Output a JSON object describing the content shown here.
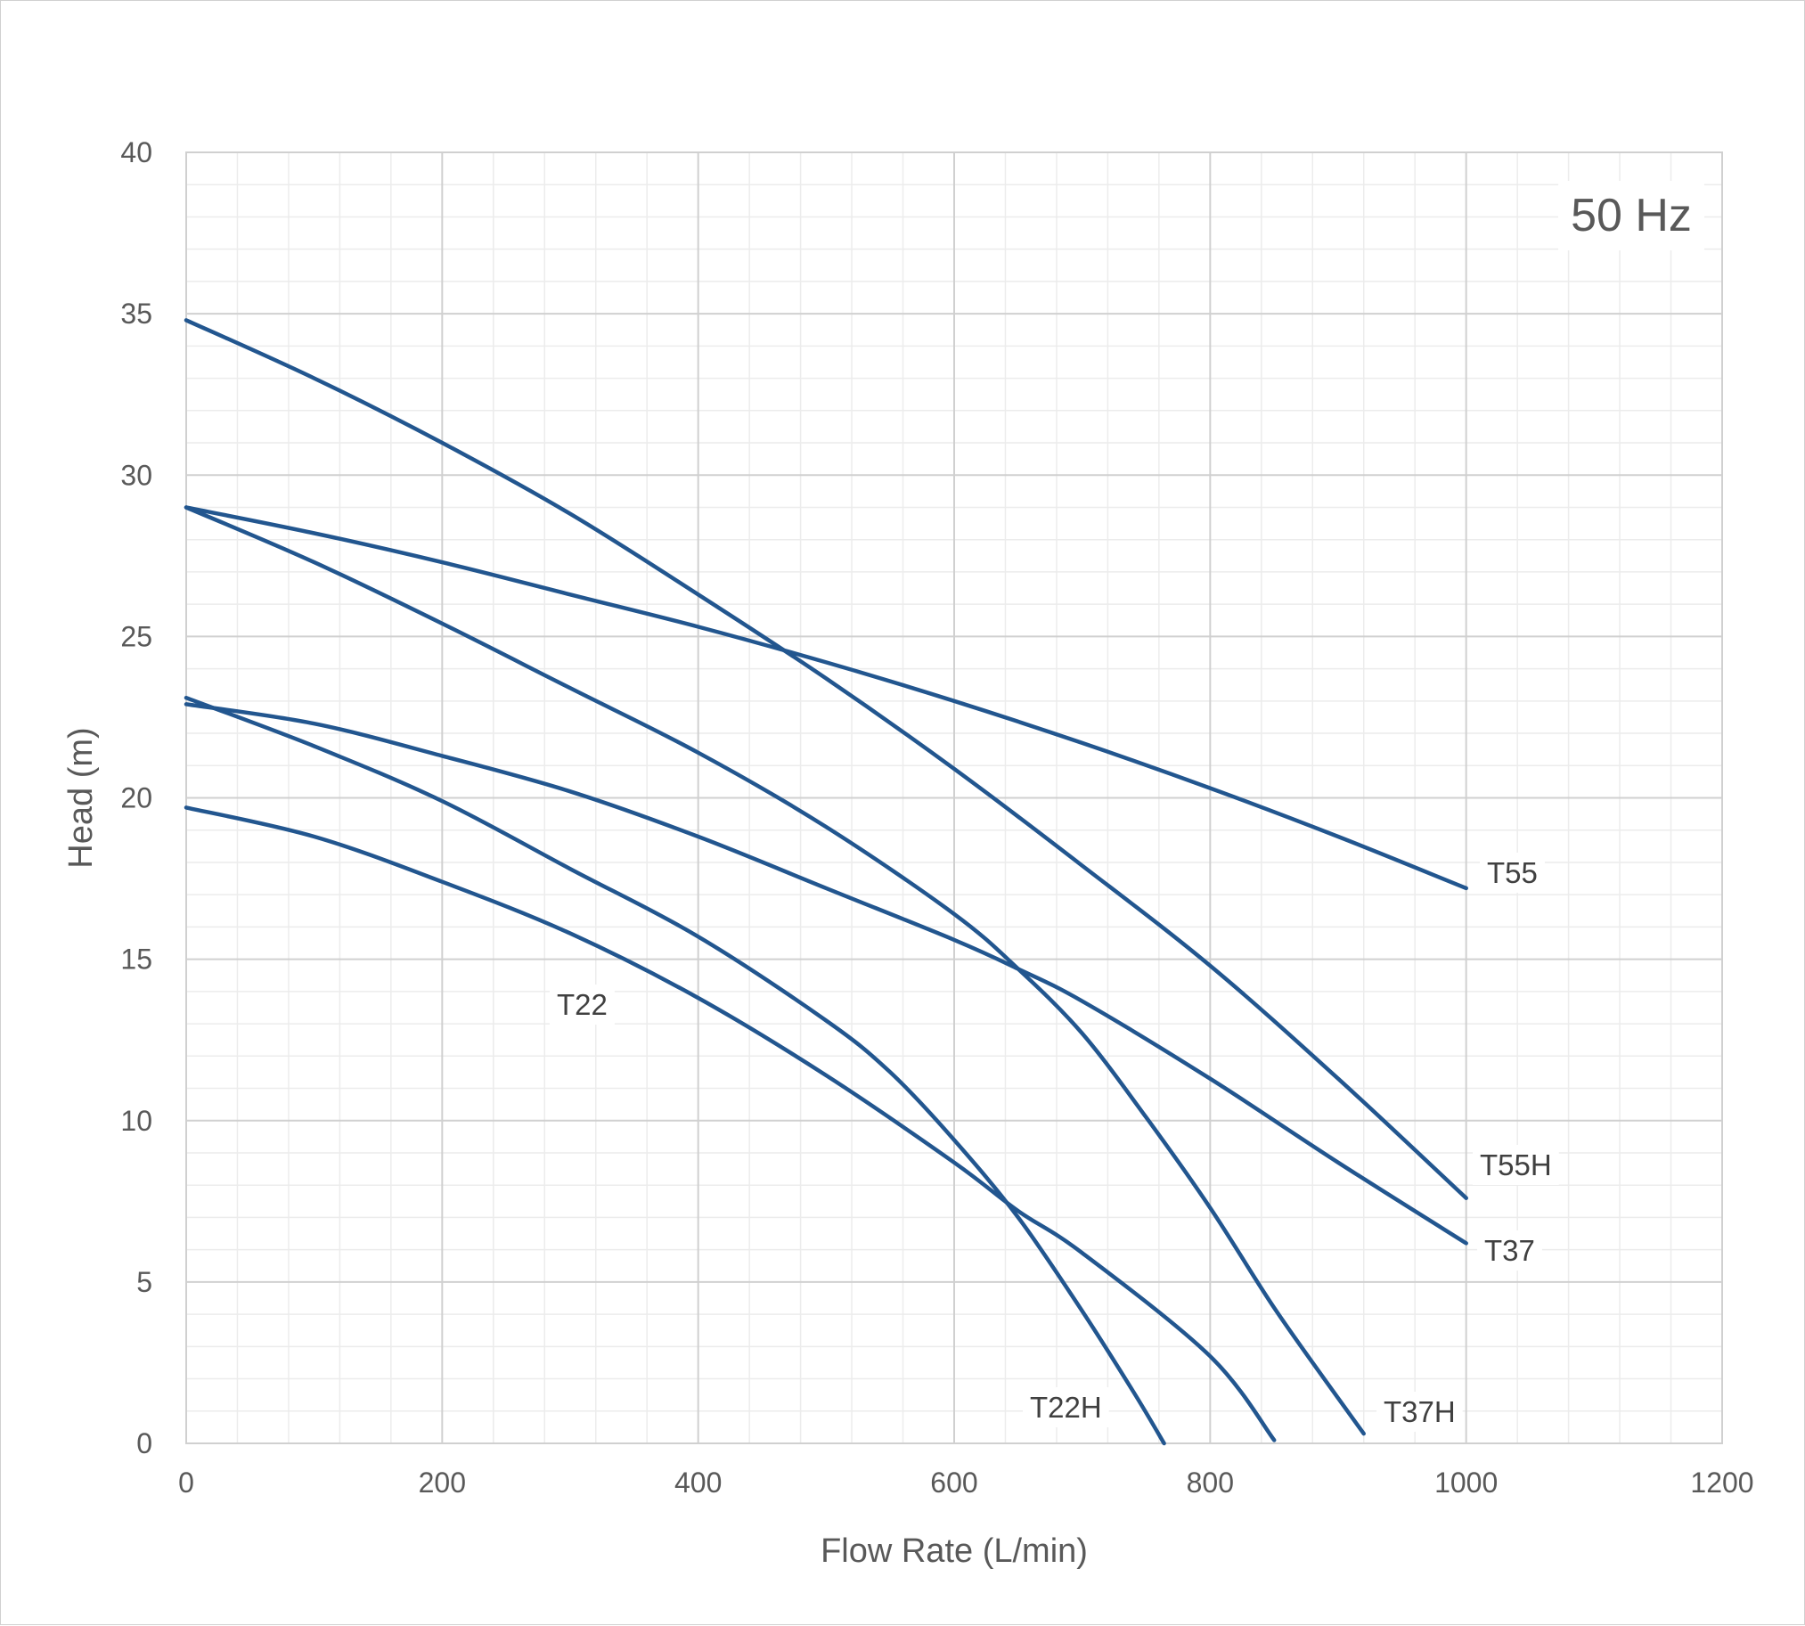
{
  "chart_data": {
    "type": "line",
    "title": "",
    "annotation": "50 Hz",
    "xlabel": "Flow Rate (L/min)",
    "ylabel": "Head (m)",
    "xlim": [
      0,
      1200
    ],
    "ylim": [
      0,
      40
    ],
    "x_ticks": [
      "0",
      "200",
      "400",
      "600",
      "800",
      "1000",
      "1200"
    ],
    "y_ticks": [
      "0",
      "5",
      "10",
      "15",
      "20",
      "25",
      "30",
      "35",
      "40"
    ],
    "x_major_step": 200,
    "x_minor_step": 40,
    "y_major_step": 5,
    "y_minor_step": 1,
    "grid": true,
    "line_color": "#22568F",
    "series": [
      {
        "name": "T55",
        "x": [
          0,
          100,
          200,
          300,
          400,
          500,
          600,
          700,
          800,
          900,
          1000
        ],
        "y": [
          29,
          28.2,
          27.3,
          26.3,
          25.3,
          24.2,
          23,
          21.7,
          20.3,
          18.8,
          17.2
        ]
      },
      {
        "name": "T55H",
        "x": [
          0,
          100,
          200,
          300,
          400,
          500,
          600,
          700,
          800,
          900,
          1000
        ],
        "y": [
          34.8,
          33,
          31,
          28.8,
          26.3,
          23.7,
          20.9,
          17.9,
          14.8,
          11.3,
          7.6
        ]
      },
      {
        "name": "T37",
        "x": [
          0,
          100,
          200,
          300,
          400,
          500,
          600,
          650,
          700,
          800,
          900,
          1000
        ],
        "y": [
          22.9,
          22.3,
          21.3,
          20.2,
          18.8,
          17.2,
          15.6,
          14.7,
          13.7,
          11.3,
          8.7,
          6.2
        ]
      },
      {
        "name": "T37H",
        "x": [
          0,
          100,
          200,
          300,
          400,
          500,
          600,
          650,
          700,
          750,
          800,
          850,
          900,
          920
        ],
        "y": [
          29,
          27.3,
          25.4,
          23.4,
          21.4,
          19.1,
          16.4,
          14.7,
          12.7,
          10.1,
          7.3,
          4.2,
          1.4,
          0.3
        ]
      },
      {
        "name": "T22",
        "x": [
          0,
          100,
          200,
          300,
          400,
          500,
          600,
          650,
          700,
          800,
          850
        ],
        "y": [
          19.7,
          18.8,
          17.4,
          15.8,
          13.8,
          11.4,
          8.7,
          7.2,
          5.9,
          2.7,
          0.1
        ]
      },
      {
        "name": "T22H",
        "x": [
          0,
          100,
          200,
          300,
          400,
          500,
          550,
          600,
          650,
          700,
          740,
          764
        ],
        "y": [
          23.1,
          21.6,
          19.9,
          17.8,
          15.7,
          13.1,
          11.5,
          9.4,
          7,
          4.1,
          1.6,
          0
        ]
      }
    ],
    "series_labels": [
      "T55",
      "T55H",
      "T37",
      "T37H",
      "T22",
      "T22H"
    ]
  }
}
